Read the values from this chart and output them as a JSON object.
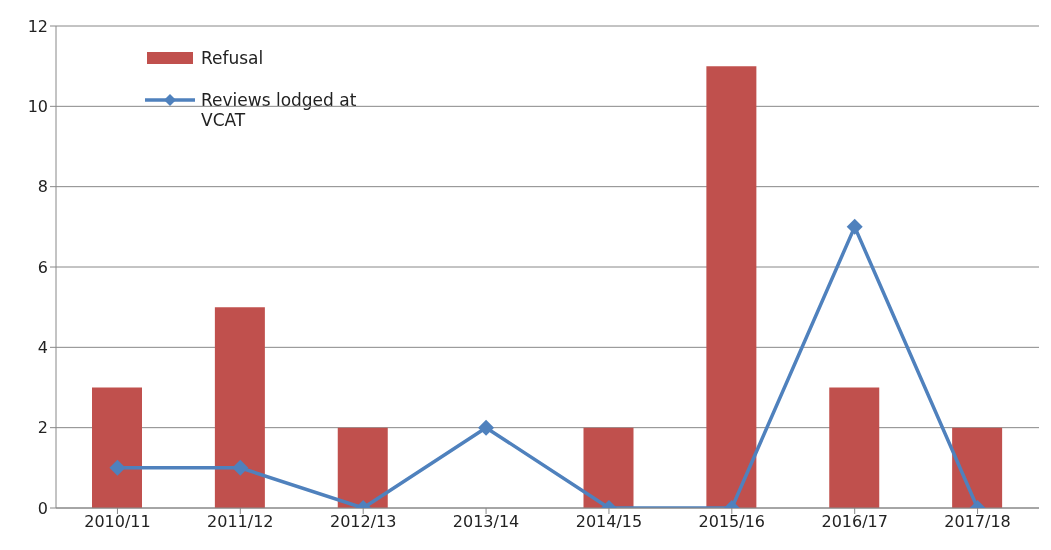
{
  "chart_data": {
    "type": "bar",
    "categories": [
      "2010/11",
      "2011/12",
      "2012/13",
      "2013/14",
      "2014/15",
      "2015/16",
      "2016/17",
      "2017/18"
    ],
    "series": [
      {
        "name": "Refusal",
        "color": "#c0504d",
        "values": [
          3,
          5,
          2,
          0,
          2,
          11,
          3,
          2
        ]
      },
      {
        "name": "Reviews lodged at VCAT",
        "type": "line",
        "color": "#4f81bd",
        "values": [
          1,
          1,
          0,
          2,
          0,
          0,
          7,
          0
        ]
      }
    ],
    "ylim": [
      0,
      12
    ],
    "yticks": [
      0,
      2,
      4,
      6,
      8,
      10,
      12
    ],
    "grid": "y",
    "legend": "top left",
    "marker": "diamond",
    "line_style": "solid"
  }
}
